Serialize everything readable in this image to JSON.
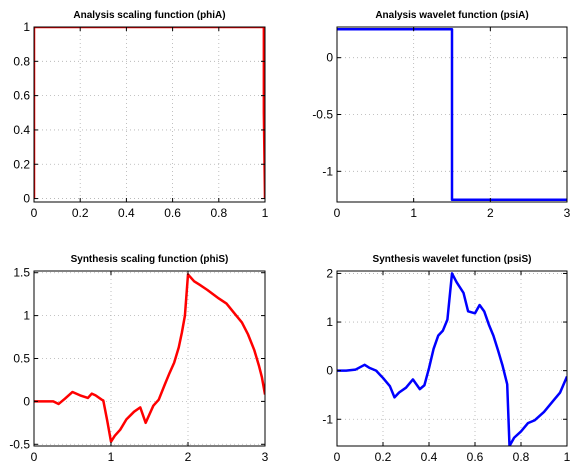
{
  "figure": {
    "background": "#ffffff"
  },
  "chart_data": [
    {
      "type": "line",
      "title": "Analysis scaling function (phiA)",
      "xlabel": "",
      "ylabel": "",
      "xlim": [
        0,
        1
      ],
      "ylim": [
        -0.02,
        1.0
      ],
      "xticks": [
        0,
        0.2,
        0.4,
        0.6,
        0.8,
        1
      ],
      "xtick_labels": [
        "0",
        "0.2",
        "0.4",
        "0.6",
        "0.8",
        "1"
      ],
      "yticks": [
        0,
        0.2,
        0.4,
        0.6,
        0.8,
        1
      ],
      "ytick_labels": [
        "0",
        "0.2",
        "0.4",
        "0.6",
        "0.8",
        "1"
      ],
      "grid": true,
      "series": [
        {
          "color": "#ff0000",
          "x": [
            0,
            0,
            0.995,
            0.995,
            1.0
          ],
          "y": [
            0,
            1,
            1,
            0.5,
            0
          ]
        }
      ]
    },
    {
      "type": "line",
      "title": "Analysis wavelet function (psiA)",
      "xlabel": "",
      "ylabel": "",
      "xlim": [
        0,
        3
      ],
      "ylim": [
        -1.27,
        0.27
      ],
      "xticks": [
        0,
        1,
        2,
        3
      ],
      "xtick_labels": [
        "0",
        "1",
        "2",
        "3"
      ],
      "yticks": [
        0,
        -0.5,
        -1
      ],
      "ytick_labels": [
        "0",
        "-0.5",
        "-1"
      ],
      "grid": true,
      "series": [
        {
          "color": "#0000ff",
          "x": [
            0,
            1.5,
            1.5,
            3
          ],
          "y": [
            0.25,
            0.25,
            -1.25,
            -1.25
          ]
        }
      ]
    },
    {
      "type": "line",
      "title": "Synthesis scaling function (phiS)",
      "xlabel": "",
      "ylabel": "",
      "xlim": [
        0,
        3
      ],
      "ylim": [
        -0.52,
        1.52
      ],
      "xticks": [
        0,
        1,
        2,
        3
      ],
      "xtick_labels": [
        "0",
        "1",
        "2",
        "3"
      ],
      "yticks": [
        -0.5,
        0,
        0.5,
        1,
        1.5
      ],
      "ytick_labels": [
        "-0.5",
        "0",
        "0.5",
        "1",
        "1.5"
      ],
      "grid": true,
      "series": [
        {
          "color": "#ff0000",
          "x": [
            0,
            0.12,
            0.25,
            0.32,
            0.4,
            0.5,
            0.6,
            0.7,
            0.75,
            0.8,
            0.88,
            0.9,
            0.95,
            1.0,
            1.05,
            1.12,
            1.2,
            1.3,
            1.38,
            1.45,
            1.5,
            1.55,
            1.62,
            1.7,
            1.76,
            1.82,
            1.88,
            1.92,
            1.96,
            2.0,
            2.08,
            2.15,
            2.25,
            2.4,
            2.5,
            2.6,
            2.7,
            2.78,
            2.86,
            2.92,
            2.96,
            3.0
          ],
          "y": [
            0,
            0,
            0,
            -0.03,
            0.03,
            0.11,
            0.07,
            0.04,
            0.09,
            0.07,
            0.02,
            0.01,
            -0.22,
            -0.47,
            -0.4,
            -0.33,
            -0.21,
            -0.12,
            -0.07,
            -0.25,
            -0.15,
            -0.05,
            0.02,
            0.2,
            0.33,
            0.45,
            0.63,
            0.8,
            1.0,
            1.48,
            1.4,
            1.36,
            1.3,
            1.2,
            1.14,
            1.03,
            0.92,
            0.78,
            0.6,
            0.42,
            0.28,
            0.08
          ]
        }
      ]
    },
    {
      "type": "line",
      "title": "Synthesis wavelet function (psiS)",
      "xlabel": "",
      "ylabel": "",
      "xlim": [
        0,
        1
      ],
      "ylim": [
        -1.55,
        2.05
      ],
      "xticks": [
        0,
        0.2,
        0.4,
        0.6,
        0.8,
        1
      ],
      "xtick_labels": [
        "0",
        "0.2",
        "0.4",
        "0.6",
        "0.8",
        "1"
      ],
      "yticks": [
        -1,
        0,
        1,
        2
      ],
      "ytick_labels": [
        "-1",
        "0",
        "1",
        "2"
      ],
      "grid": true,
      "series": [
        {
          "color": "#0000ff",
          "x": [
            0,
            0.04,
            0.08,
            0.12,
            0.14,
            0.17,
            0.2,
            0.23,
            0.25,
            0.27,
            0.3,
            0.33,
            0.36,
            0.38,
            0.4,
            0.42,
            0.44,
            0.46,
            0.48,
            0.5,
            0.52,
            0.55,
            0.57,
            0.6,
            0.62,
            0.64,
            0.66,
            0.68,
            0.7,
            0.72,
            0.74,
            0.75,
            0.77,
            0.8,
            0.83,
            0.86,
            0.9,
            0.94,
            0.97,
            1.0
          ],
          "y": [
            0,
            0,
            0.02,
            0.12,
            0.06,
            0.0,
            -0.15,
            -0.32,
            -0.55,
            -0.45,
            -0.35,
            -0.18,
            -0.38,
            -0.3,
            0.05,
            0.45,
            0.72,
            0.82,
            1.05,
            2.0,
            1.82,
            1.6,
            1.22,
            1.18,
            1.35,
            1.22,
            0.95,
            0.72,
            0.42,
            0.1,
            -0.28,
            -1.55,
            -1.38,
            -1.25,
            -1.08,
            -1.02,
            -0.85,
            -0.62,
            -0.45,
            -0.12
          ]
        }
      ]
    }
  ]
}
